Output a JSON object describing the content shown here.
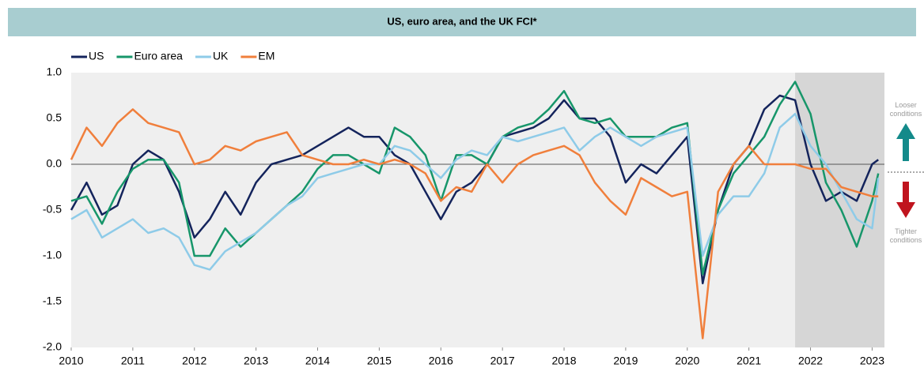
{
  "chart_data": {
    "type": "line",
    "title": "US, euro area, and the UK FCI*",
    "legend": "top-left",
    "x": [
      2010,
      2010.25,
      2010.5,
      2010.75,
      2011,
      2011.25,
      2011.5,
      2011.75,
      2012,
      2012.25,
      2012.5,
      2012.75,
      2013,
      2013.25,
      2013.5,
      2013.75,
      2014,
      2014.25,
      2014.5,
      2014.75,
      2015,
      2015.25,
      2015.5,
      2015.75,
      2016,
      2016.25,
      2016.5,
      2016.75,
      2017,
      2017.25,
      2017.5,
      2017.75,
      2018,
      2018.25,
      2018.5,
      2018.75,
      2019,
      2019.25,
      2019.5,
      2019.75,
      2020,
      2020.25,
      2020.5,
      2020.75,
      2021,
      2021.25,
      2021.5,
      2021.75,
      2022,
      2022.25,
      2022.5,
      2022.75,
      2023,
      2023.1
    ],
    "series": [
      {
        "name": "US",
        "color": "#14245c",
        "values": [
          -0.5,
          -0.2,
          -0.55,
          -0.45,
          0,
          0.15,
          0.05,
          -0.3,
          -0.8,
          -0.6,
          -0.3,
          -0.55,
          -0.2,
          0,
          0.05,
          0.1,
          0.2,
          0.3,
          0.4,
          0.3,
          0.3,
          0.1,
          0,
          -0.3,
          -0.6,
          -0.3,
          -0.2,
          0,
          0.3,
          0.35,
          0.4,
          0.5,
          0.7,
          0.5,
          0.5,
          0.3,
          -0.2,
          0,
          -0.1,
          0.1,
          0.3,
          -1.3,
          -0.5,
          0,
          0.2,
          0.6,
          0.75,
          0.7,
          0,
          -0.4,
          -0.3,
          -0.4,
          0,
          0.05
        ]
      },
      {
        "name": "Euro area",
        "color": "#17966a",
        "values": [
          -0.4,
          -0.35,
          -0.65,
          -0.3,
          -0.05,
          0.05,
          0.05,
          -0.2,
          -1.0,
          -1.0,
          -0.7,
          -0.9,
          -0.75,
          -0.6,
          -0.45,
          -0.3,
          -0.05,
          0.1,
          0.1,
          0,
          -0.1,
          0.4,
          0.3,
          0.1,
          -0.4,
          0.1,
          0.1,
          0,
          0.3,
          0.4,
          0.45,
          0.6,
          0.8,
          0.5,
          0.45,
          0.5,
          0.3,
          0.3,
          0.3,
          0.4,
          0.45,
          -1.2,
          -0.5,
          -0.1,
          0.1,
          0.3,
          0.65,
          0.9,
          0.55,
          -0.2,
          -0.5,
          -0.9,
          -0.4,
          -0.1
        ]
      },
      {
        "name": "UK",
        "color": "#8ecbe8",
        "values": [
          -0.6,
          -0.5,
          -0.8,
          -0.7,
          -0.6,
          -0.75,
          -0.7,
          -0.8,
          -1.1,
          -1.15,
          -0.95,
          -0.85,
          -0.75,
          -0.6,
          -0.45,
          -0.35,
          -0.15,
          -0.1,
          -0.05,
          0,
          0,
          0.2,
          0.15,
          0,
          -0.15,
          0.05,
          0.15,
          0.1,
          0.3,
          0.25,
          0.3,
          0.35,
          0.4,
          0.15,
          0.3,
          0.4,
          0.3,
          0.2,
          0.3,
          0.35,
          0.4,
          -1.0,
          -0.55,
          -0.35,
          -0.35,
          -0.1,
          0.4,
          0.55,
          0.2,
          0,
          -0.3,
          -0.6,
          -0.7,
          -0.15
        ]
      },
      {
        "name": "EM",
        "color": "#f07f3c",
        "values": [
          0.05,
          0.4,
          0.2,
          0.45,
          0.6,
          0.45,
          0.4,
          0.35,
          0,
          0.05,
          0.2,
          0.15,
          0.25,
          0.3,
          0.35,
          0.1,
          0.05,
          0,
          0,
          0.05,
          0,
          0.05,
          0,
          -0.1,
          -0.4,
          -0.25,
          -0.3,
          0,
          -0.2,
          0,
          0.1,
          0.15,
          0.2,
          0.1,
          -0.2,
          -0.4,
          -0.55,
          -0.15,
          -0.25,
          -0.35,
          -0.3,
          -1.9,
          -0.3,
          0,
          0.2,
          0,
          0,
          0,
          -0.05,
          -0.05,
          -0.25,
          -0.3,
          -0.35,
          -0.35
        ]
      }
    ],
    "xlim": [
      2010,
      2023.2
    ],
    "xticks": [
      2010,
      2011,
      2012,
      2013,
      2014,
      2015,
      2016,
      2017,
      2018,
      2019,
      2020,
      2021,
      2022,
      2023
    ],
    "ylim": [
      -2,
      1
    ],
    "yticks": [
      {
        "value": 1,
        "label": "1.0"
      },
      0.5,
      {
        "value": 0,
        "label": "0.0"
      },
      -0.5,
      {
        "value": -1,
        "label": "-1.0"
      },
      -1.5,
      {
        "value": -2,
        "label": "-2.0"
      }
    ],
    "shaded_region": [
      2021.75,
      2023.2
    ],
    "annotations": [
      "Looser conditions",
      "Tighter conditions"
    ]
  }
}
